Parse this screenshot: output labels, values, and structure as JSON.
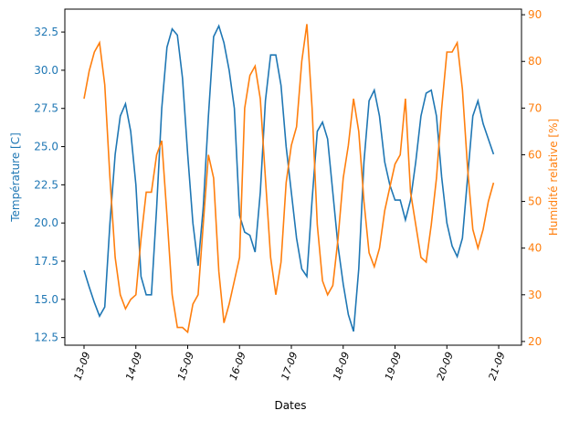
{
  "chart_data": {
    "type": "line",
    "xlabel": "Dates",
    "ylabel_left": "Température [C]",
    "ylabel_right": "Humidité relative [%]",
    "x_ticks": [
      "13-09",
      "14-09",
      "15-09",
      "16-09",
      "17-09",
      "18-09",
      "19-09",
      "20-09",
      "21-09"
    ],
    "y_left_ticks": [
      "12.5",
      "15.0",
      "17.5",
      "20.0",
      "22.5",
      "25.0",
      "27.5",
      "30.0",
      "32.5"
    ],
    "y_right_ticks": [
      "20",
      "30",
      "40",
      "50",
      "60",
      "70",
      "80",
      "90"
    ],
    "ylim_left": [
      12.0,
      34.0
    ],
    "ylim_right": [
      19.2,
      91.2
    ],
    "grid": false,
    "colors": {
      "temperature": "#1f77b4",
      "humidity": "#ff7f0e"
    },
    "x": [
      "13-09 00:00",
      "13-09 02:24",
      "13-09 04:48",
      "13-09 07:12",
      "13-09 09:36",
      "13-09 12:00",
      "13-09 14:24",
      "13-09 16:48",
      "13-09 19:12",
      "13-09 21:36",
      "14-09 00:00",
      "14-09 02:24",
      "14-09 04:48",
      "14-09 07:12",
      "14-09 09:36",
      "14-09 12:00",
      "14-09 14:24",
      "14-09 16:48",
      "14-09 19:12",
      "14-09 21:36",
      "15-09 00:00",
      "15-09 02:24",
      "15-09 04:48",
      "15-09 07:12",
      "15-09 09:36",
      "15-09 12:00",
      "15-09 14:24",
      "15-09 16:48",
      "15-09 19:12",
      "15-09 21:36",
      "16-09 00:00",
      "16-09 02:24",
      "16-09 04:48",
      "16-09 07:12",
      "16-09 09:36",
      "16-09 12:00",
      "16-09 14:24",
      "16-09 16:48",
      "16-09 19:12",
      "16-09 21:36",
      "17-09 00:00",
      "17-09 02:24",
      "17-09 04:48",
      "17-09 07:12",
      "17-09 09:36",
      "17-09 12:00",
      "17-09 14:24",
      "17-09 16:48",
      "17-09 19:12",
      "17-09 21:36",
      "18-09 00:00",
      "18-09 02:24",
      "18-09 04:48",
      "18-09 07:12",
      "18-09 09:36",
      "18-09 12:00",
      "18-09 14:24",
      "18-09 16:48",
      "18-09 19:12",
      "18-09 21:36",
      "19-09 00:00",
      "19-09 02:24",
      "19-09 04:48",
      "19-09 07:12",
      "19-09 09:36",
      "19-09 12:00",
      "19-09 14:24",
      "19-09 16:48",
      "19-09 19:12",
      "19-09 21:36",
      "20-09 00:00",
      "20-09 02:24",
      "20-09 04:48",
      "20-09 07:12",
      "20-09 09:36",
      "20-09 12:00",
      "20-09 14:24",
      "20-09 16:48",
      "20-09 19:12",
      "20-09 21:36"
    ],
    "series": [
      {
        "axis": "left",
        "values": [
          16.9,
          15.8,
          14.8,
          13.9,
          14.5,
          20,
          24.5,
          27,
          27.8,
          26,
          22.5,
          16.5,
          15.3,
          15.3,
          21,
          27.5,
          31.5,
          32.7,
          32.3,
          29.5,
          24.5,
          20,
          17.2,
          21,
          27,
          32.2,
          32.9,
          31.8,
          30,
          27.5,
          20.5,
          19.4,
          19.2,
          18.1,
          22,
          28,
          31,
          31,
          29,
          25,
          22,
          19,
          17,
          16.5,
          21.5,
          26,
          26.6,
          25.5,
          22,
          18.5,
          16,
          14,
          12.9,
          17,
          24,
          28,
          28.7,
          27,
          24,
          22.5,
          21.5,
          21.5,
          20.2,
          21.5,
          24,
          27,
          28.5,
          28.7,
          27,
          23,
          20,
          18.5,
          17.8,
          19,
          23,
          27,
          28,
          26.5,
          25.5,
          24.5
        ]
      },
      {
        "axis": "right",
        "values": [
          72,
          78,
          82,
          84,
          75,
          55,
          38,
          30,
          27,
          29,
          30,
          42,
          52,
          52,
          60,
          63,
          47,
          30,
          23,
          23,
          22,
          28,
          30,
          45,
          60,
          55,
          35,
          24,
          28,
          33,
          38,
          70,
          77,
          79,
          72,
          55,
          38,
          30,
          37,
          54,
          62,
          66,
          80,
          88,
          70,
          45,
          33,
          30,
          32,
          42,
          55,
          62,
          72,
          65,
          50,
          39,
          36,
          40,
          48,
          53,
          58,
          60,
          72,
          52,
          45,
          38,
          37,
          45,
          55,
          70,
          82,
          82,
          84,
          74,
          57,
          44,
          40,
          44,
          50,
          54
        ]
      }
    ]
  }
}
